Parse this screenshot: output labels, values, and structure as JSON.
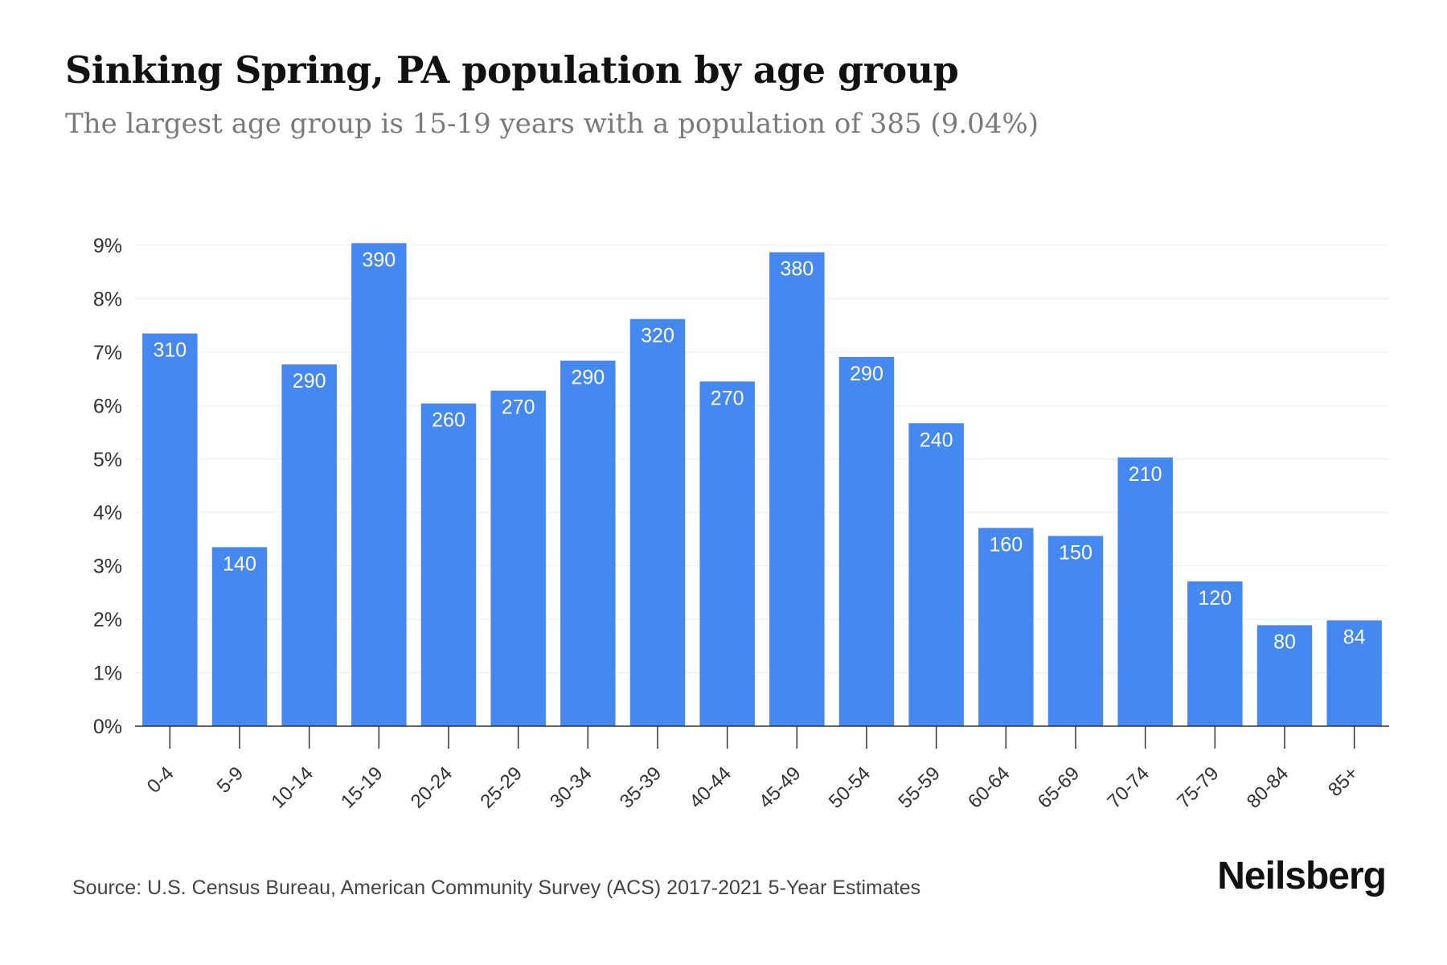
{
  "title": "Sinking Spring, PA population by age group",
  "subtitle": "The largest age group is 15-19 years with a population of 385 (9.04%)",
  "source": "Source: U.S. Census Bureau, American Community Survey (ACS) 2017-2021 5-Year Estimates",
  "brand": "Neilsberg",
  "colors": {
    "bar": "#4589f0",
    "grid": "#eeeeee",
    "axis": "#333333"
  },
  "chart_data": {
    "type": "bar",
    "categories": [
      "0-4",
      "5-9",
      "10-14",
      "15-19",
      "20-24",
      "25-29",
      "30-34",
      "35-39",
      "40-44",
      "45-49",
      "50-54",
      "55-59",
      "60-64",
      "65-69",
      "70-74",
      "75-79",
      "80-84",
      "85+"
    ],
    "values": [
      7.35,
      3.35,
      6.77,
      9.04,
      6.04,
      6.28,
      6.84,
      7.62,
      6.45,
      8.87,
      6.91,
      5.67,
      3.71,
      3.56,
      5.03,
      2.71,
      1.89,
      1.98
    ],
    "data_labels": [
      "310",
      "140",
      "290",
      "390",
      "260",
      "270",
      "290",
      "320",
      "270",
      "380",
      "290",
      "240",
      "160",
      "150",
      "210",
      "120",
      "80",
      "84"
    ],
    "yticks": [
      "0%",
      "1%",
      "2%",
      "3%",
      "4%",
      "5%",
      "6%",
      "7%",
      "8%",
      "9%"
    ],
    "ylim": [
      0,
      9
    ],
    "grid": true,
    "xlabel": "",
    "ylabel": ""
  }
}
